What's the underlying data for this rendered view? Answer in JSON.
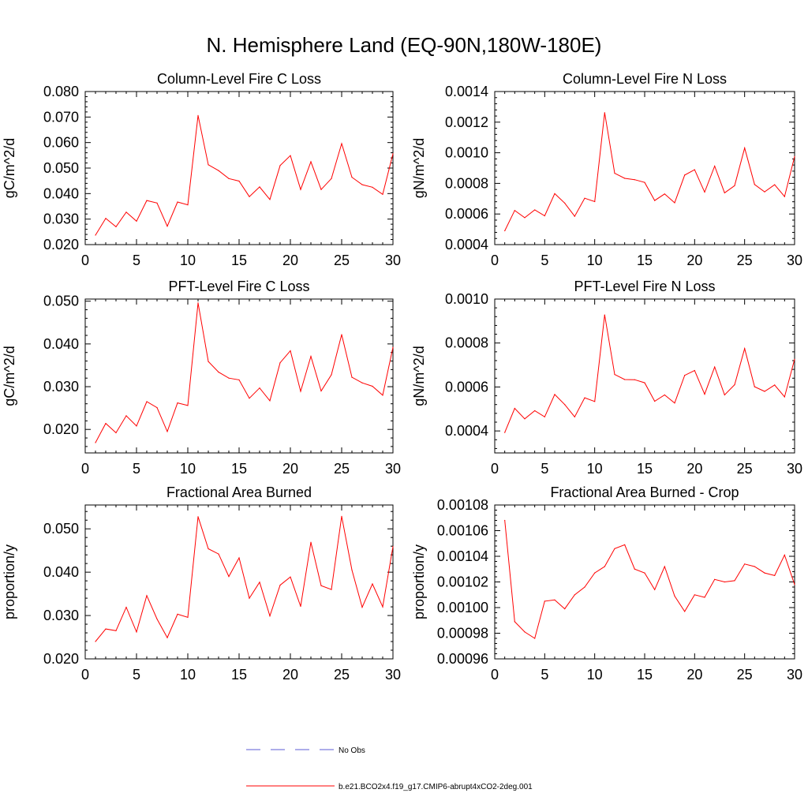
{
  "figure_title": "N. Hemisphere Land (EQ-90N,180W-180E)",
  "legend": {
    "entries": [
      {
        "label": "No Obs",
        "color": "#5b5bd6",
        "dash": "dashed"
      },
      {
        "label": "b.e21.BCO2x4.f19_g17.CMIP6-abrupt4xCO2-2deg.001",
        "color": "#ff0000",
        "dash": "solid"
      }
    ]
  },
  "chart_data": [
    {
      "type": "line",
      "title": "Column-Level Fire C Loss",
      "ylabel": "gC/m^2/d",
      "xlabel": "",
      "xlim": [
        0,
        30
      ],
      "ylim": [
        0.02,
        0.08
      ],
      "xticks": [
        0,
        5,
        10,
        15,
        20,
        25,
        30
      ],
      "xtick_labels": [
        "0",
        "5",
        "10",
        "15",
        "20",
        "25",
        "30"
      ],
      "yticks": [
        0.02,
        0.03,
        0.04,
        0.05,
        0.06,
        0.07,
        0.08
      ],
      "ytick_labels": [
        "0.020",
        "0.030",
        "0.040",
        "0.050",
        "0.060",
        "0.070",
        "0.080"
      ],
      "yminor_step": 0.002,
      "series": [
        {
          "name": "b.e21.BCO2x4.f19_g17.CMIP6-abrupt4xCO2-2deg.001",
          "color": "#ff0000",
          "x": [
            1,
            2,
            3,
            4,
            5,
            6,
            7,
            8,
            9,
            10,
            11,
            12,
            13,
            14,
            15,
            16,
            17,
            18,
            19,
            20,
            21,
            22,
            23,
            24,
            25,
            26,
            27,
            28,
            29,
            30
          ],
          "values": [
            0.0237,
            0.0303,
            0.027,
            0.0327,
            0.0292,
            0.0373,
            0.0363,
            0.0272,
            0.0367,
            0.0356,
            0.0706,
            0.0513,
            0.049,
            0.0459,
            0.0449,
            0.0388,
            0.0426,
            0.0377,
            0.051,
            0.0549,
            0.0416,
            0.0525,
            0.0416,
            0.0459,
            0.0596,
            0.0464,
            0.0435,
            0.0425,
            0.0397,
            0.0556
          ]
        }
      ]
    },
    {
      "type": "line",
      "title": "Column-Level Fire N Loss",
      "ylabel": "gN/m^2/d",
      "xlabel": "",
      "xlim": [
        0,
        30
      ],
      "ylim": [
        0.0004,
        0.0014
      ],
      "xticks": [
        0,
        5,
        10,
        15,
        20,
        25,
        30
      ],
      "xtick_labels": [
        "0",
        "5",
        "10",
        "15",
        "20",
        "25",
        "30"
      ],
      "yticks": [
        0.0004,
        0.0006,
        0.0008,
        0.001,
        0.0012,
        0.0014
      ],
      "ytick_labels": [
        "0.0004",
        "0.0006",
        "0.0008",
        "0.0010",
        "0.0012",
        "0.0014"
      ],
      "yminor_step": 4e-05,
      "series": [
        {
          "name": "b.e21.BCO2x4.f19_g17.CMIP6-abrupt4xCO2-2deg.001",
          "color": "#ff0000",
          "x": [
            1,
            2,
            3,
            4,
            5,
            6,
            7,
            8,
            9,
            10,
            11,
            12,
            13,
            14,
            15,
            16,
            17,
            18,
            19,
            20,
            21,
            22,
            23,
            24,
            25,
            26,
            27,
            28,
            29,
            30
          ],
          "values": [
            0.00049,
            0.000623,
            0.000576,
            0.000627,
            0.000588,
            0.000733,
            0.000671,
            0.000585,
            0.000703,
            0.000681,
            0.001262,
            0.000866,
            0.000833,
            0.000824,
            0.000806,
            0.000688,
            0.000731,
            0.000673,
            0.000854,
            0.000889,
            0.000743,
            0.000913,
            0.000738,
            0.000785,
            0.001031,
            0.000793,
            0.000745,
            0.000791,
            0.000714,
            0.000975
          ]
        }
      ]
    },
    {
      "type": "line",
      "title": "PFT-Level Fire C Loss",
      "ylabel": "gC/m^2/d",
      "xlabel": "",
      "xlim": [
        0,
        30
      ],
      "ylim": [
        0.0145,
        0.0505
      ],
      "xticks": [
        0,
        5,
        10,
        15,
        20,
        25,
        30
      ],
      "xtick_labels": [
        "0",
        "5",
        "10",
        "15",
        "20",
        "25",
        "30"
      ],
      "yticks": [
        0.02,
        0.03,
        0.04,
        0.05
      ],
      "ytick_labels": [
        "0.020",
        "0.030",
        "0.040",
        "0.050"
      ],
      "yminor_step": 0.002,
      "series": [
        {
          "name": "b.e21.BCO2x4.f19_g17.CMIP6-abrupt4xCO2-2deg.001",
          "color": "#ff0000",
          "x": [
            1,
            2,
            3,
            4,
            5,
            6,
            7,
            8,
            9,
            10,
            11,
            12,
            13,
            14,
            15,
            16,
            17,
            18,
            19,
            20,
            21,
            22,
            23,
            24,
            25,
            26,
            27,
            28,
            29,
            30
          ],
          "values": [
            0.0169,
            0.0214,
            0.0192,
            0.0232,
            0.0208,
            0.0265,
            0.0251,
            0.0195,
            0.0262,
            0.0256,
            0.0496,
            0.0359,
            0.0334,
            0.032,
            0.0316,
            0.0273,
            0.0297,
            0.0267,
            0.0356,
            0.0384,
            0.0289,
            0.0371,
            0.029,
            0.0328,
            0.0422,
            0.0322,
            0.0309,
            0.0301,
            0.028,
            0.0392
          ]
        }
      ]
    },
    {
      "type": "line",
      "title": "PFT-Level Fire N Loss",
      "ylabel": "gN/m^2/d",
      "xlabel": "",
      "xlim": [
        0,
        30
      ],
      "ylim": [
        0.0003,
        0.001
      ],
      "xticks": [
        0,
        5,
        10,
        15,
        20,
        25,
        30
      ],
      "xtick_labels": [
        "0",
        "5",
        "10",
        "15",
        "20",
        "25",
        "30"
      ],
      "yticks": [
        0.0004,
        0.0006,
        0.0008,
        0.001
      ],
      "ytick_labels": [
        "0.0004",
        "0.0006",
        "0.0008",
        "0.0010"
      ],
      "yminor_step": 4e-05,
      "series": [
        {
          "name": "b.e21.BCO2x4.f19_g17.CMIP6-abrupt4xCO2-2deg.001",
          "color": "#ff0000",
          "x": [
            1,
            2,
            3,
            4,
            5,
            6,
            7,
            8,
            9,
            10,
            11,
            12,
            13,
            14,
            15,
            16,
            17,
            18,
            19,
            20,
            21,
            22,
            23,
            24,
            25,
            26,
            27,
            28,
            29,
            30
          ],
          "values": [
            0.000393,
            0.000503,
            0.000455,
            0.000492,
            0.000464,
            0.000566,
            0.00052,
            0.000464,
            0.000551,
            0.000534,
            0.000928,
            0.000657,
            0.000634,
            0.000633,
            0.000619,
            0.000535,
            0.000564,
            0.000527,
            0.000653,
            0.000675,
            0.000567,
            0.000691,
            0.000564,
            0.00061,
            0.000775,
            0.000601,
            0.00058,
            0.000609,
            0.000555,
            0.000726
          ]
        }
      ]
    },
    {
      "type": "line",
      "title": "Fractional Area Burned",
      "ylabel": "proportion/y",
      "xlabel": "",
      "xlim": [
        0,
        30
      ],
      "ylim": [
        0.02,
        0.0555
      ],
      "xticks": [
        0,
        5,
        10,
        15,
        20,
        25,
        30
      ],
      "xtick_labels": [
        "0",
        "5",
        "10",
        "15",
        "20",
        "25",
        "30"
      ],
      "yticks": [
        0.02,
        0.03,
        0.04,
        0.05
      ],
      "ytick_labels": [
        "0.020",
        "0.030",
        "0.040",
        "0.050"
      ],
      "yminor_step": 0.002,
      "series": [
        {
          "name": "b.e21.BCO2x4.f19_g17.CMIP6-abrupt4xCO2-2deg.001",
          "color": "#ff0000",
          "x": [
            1,
            2,
            3,
            4,
            5,
            6,
            7,
            8,
            9,
            10,
            11,
            12,
            13,
            14,
            15,
            16,
            17,
            18,
            19,
            20,
            21,
            22,
            23,
            24,
            25,
            26,
            27,
            28,
            29,
            30
          ],
          "values": [
            0.024,
            0.0269,
            0.0265,
            0.0319,
            0.0262,
            0.0346,
            0.0292,
            0.0249,
            0.0303,
            0.0296,
            0.0528,
            0.0454,
            0.0442,
            0.039,
            0.0433,
            0.034,
            0.0377,
            0.0299,
            0.037,
            0.0389,
            0.0321,
            0.0469,
            0.0369,
            0.036,
            0.0529,
            0.0405,
            0.0319,
            0.0373,
            0.032,
            0.0459
          ]
        }
      ]
    },
    {
      "type": "line",
      "title": "Fractional Area Burned - Crop",
      "ylabel": "proportion/y",
      "xlabel": "",
      "xlim": [
        0,
        30
      ],
      "ylim": [
        0.00096,
        0.00108
      ],
      "xticks": [
        0,
        5,
        10,
        15,
        20,
        25,
        30
      ],
      "xtick_labels": [
        "0",
        "5",
        "10",
        "15",
        "20",
        "25",
        "30"
      ],
      "yticks": [
        0.00096,
        0.00098,
        0.001,
        0.00102,
        0.00104,
        0.00106,
        0.00108
      ],
      "ytick_labels": [
        "0.00096",
        "0.00098",
        "0.00100",
        "0.00102",
        "0.00104",
        "0.00106",
        "0.00108"
      ],
      "yminor_step": 4e-06,
      "series": [
        {
          "name": "b.e21.BCO2x4.f19_g17.CMIP6-abrupt4xCO2-2deg.001",
          "color": "#ff0000",
          "x": [
            1,
            2,
            3,
            4,
            5,
            6,
            7,
            8,
            9,
            10,
            11,
            12,
            13,
            14,
            15,
            16,
            17,
            18,
            19,
            20,
            21,
            22,
            23,
            24,
            25,
            26,
            27,
            28,
            29,
            30
          ],
          "values": [
            0.001068,
            0.000989,
            0.000981,
            0.000976,
            0.001005,
            0.001006,
            0.000999,
            0.00101,
            0.001016,
            0.001027,
            0.001032,
            0.001046,
            0.001049,
            0.00103,
            0.001027,
            0.001014,
            0.001032,
            0.001009,
            0.000997,
            0.00101,
            0.001008,
            0.001022,
            0.00102,
            0.001021,
            0.001034,
            0.001032,
            0.001027,
            0.001025,
            0.001041,
            0.001018
          ]
        }
      ]
    }
  ]
}
